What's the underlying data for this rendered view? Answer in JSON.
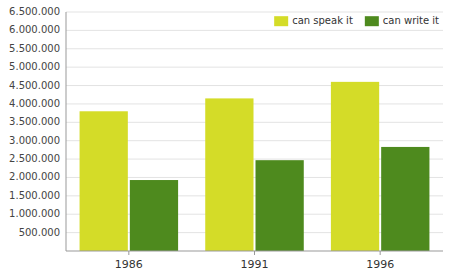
{
  "chart_data": {
    "type": "bar",
    "categories": [
      "1986",
      "1991",
      "1996"
    ],
    "series": [
      {
        "name": "can speak it",
        "color": "#d4dc28",
        "values": [
          3800000,
          4150000,
          4600000
        ]
      },
      {
        "name": "can write it",
        "color": "#4e8a1e",
        "values": [
          1930000,
          2470000,
          2830000
        ]
      }
    ],
    "ylim": [
      0,
      6500000
    ],
    "yticks": [
      {
        "value": 500000,
        "label": "500.000"
      },
      {
        "value": 1000000,
        "label": "1.000.000"
      },
      {
        "value": 1500000,
        "label": "1.500.000"
      },
      {
        "value": 2000000,
        "label": "2.000.000"
      },
      {
        "value": 2500000,
        "label": "2.500.000"
      },
      {
        "value": 3000000,
        "label": "3.000.000"
      },
      {
        "value": 3500000,
        "label": "3.500.000"
      },
      {
        "value": 4000000,
        "label": "4.000.000"
      },
      {
        "value": 4500000,
        "label": "4.500.000"
      },
      {
        "value": 5000000,
        "label": "5.000.000"
      },
      {
        "value": 5500000,
        "label": "5.500.000"
      },
      {
        "value": 6000000,
        "label": "6.000.000"
      },
      {
        "value": 6500000,
        "label": "6.500.000"
      }
    ],
    "grid": true,
    "legend": "upper right"
  }
}
